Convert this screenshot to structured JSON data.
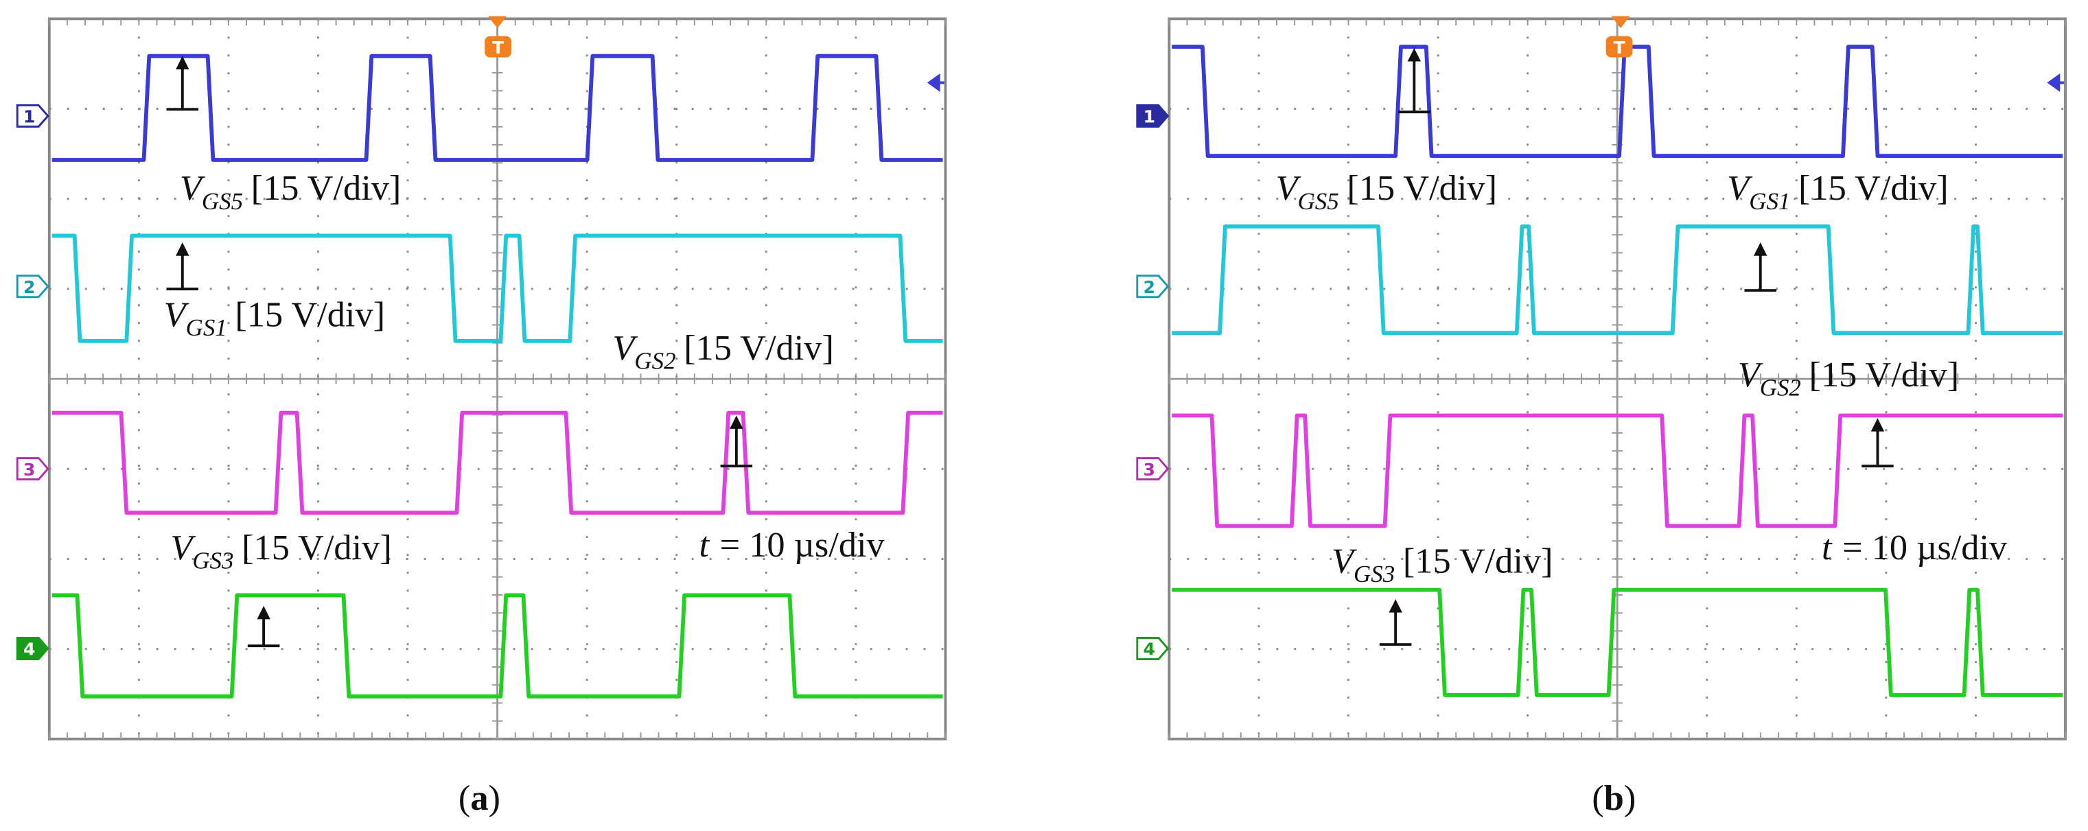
{
  "panels": [
    {
      "trigger": "T",
      "channels": [
        {
          "label": "1"
        },
        {
          "label": "2"
        },
        {
          "label": "3"
        },
        {
          "label": "4"
        }
      ],
      "signals": [
        {
          "symbol": "V",
          "subscript": "GS5",
          "scale": "[15 V/div]"
        },
        {
          "symbol": "V",
          "subscript": "GS1",
          "scale": "[15 V/div]"
        },
        {
          "symbol": "V",
          "subscript": "GS2",
          "scale": "[15 V/div]"
        },
        {
          "symbol": "V",
          "subscript": "GS3",
          "scale": "[15 V/div]"
        }
      ],
      "time": {
        "symbol": "t",
        "text": "= 10 µs/div"
      },
      "caption": {
        "open": "(",
        "letter": "a",
        "close": ")"
      }
    },
    {
      "trigger": "T",
      "channels": [
        {
          "label": "1"
        },
        {
          "label": "2"
        },
        {
          "label": "3"
        },
        {
          "label": "4"
        }
      ],
      "signals": [
        {
          "symbol": "V",
          "subscript": "GS5",
          "scale": "[15 V/div]"
        },
        {
          "symbol": "V",
          "subscript": "GS1",
          "scale": "[15 V/div]"
        },
        {
          "symbol": "V",
          "subscript": "GS2",
          "scale": "[15 V/div]"
        },
        {
          "symbol": "V",
          "subscript": "GS3",
          "scale": "[15 V/div]"
        }
      ],
      "time": {
        "symbol": "t",
        "text": "= 10 µs/div"
      },
      "caption": {
        "open": "(",
        "letter": "b",
        "close": ")"
      }
    }
  ]
}
